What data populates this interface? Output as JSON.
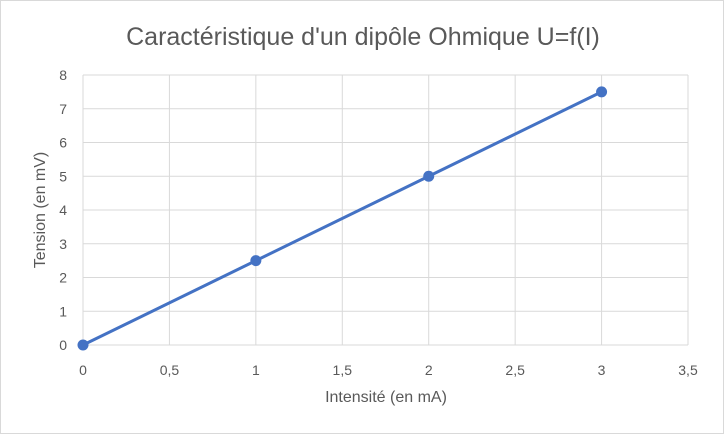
{
  "chart_data": {
    "type": "scatter",
    "title": "Caractéristique d'un dipôle Ohmique U=f(I)",
    "xlabel": "Intensité (en mA)",
    "ylabel": "Tension (en mV)",
    "xlim": [
      0,
      3.5
    ],
    "ylim": [
      0,
      8
    ],
    "x_ticks": [
      "0",
      "0,5",
      "1",
      "1,5",
      "2",
      "2,5",
      "3",
      "3,5"
    ],
    "y_ticks": [
      "0",
      "1",
      "2",
      "3",
      "4",
      "5",
      "6",
      "7",
      "8"
    ],
    "grid": true,
    "legend": "none",
    "series": [
      {
        "x": [
          0,
          1,
          2,
          3
        ],
        "y": [
          0,
          2.5,
          5,
          7.5
        ],
        "color": "#4472c4",
        "style": "line-with-markers"
      }
    ]
  }
}
